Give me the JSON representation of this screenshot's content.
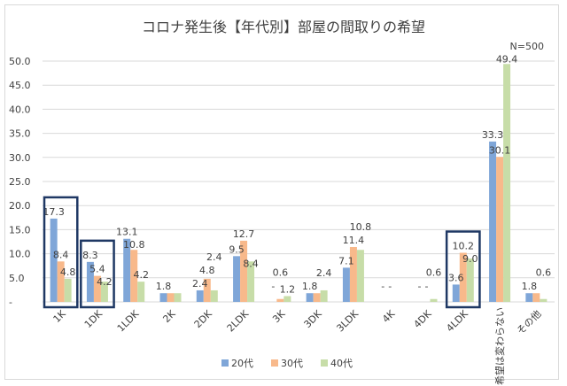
{
  "chart_data": {
    "type": "bar",
    "title": "コロナ発生後【年代別】部屋の間取りの希望",
    "note": "N=500",
    "categories": [
      "1K",
      "1DK",
      "1LDK",
      "2K",
      "2DK",
      "2LDK",
      "3K",
      "3DK",
      "3LDK",
      "4K",
      "4DK",
      "4LDK",
      "希望は変わらない",
      "その他"
    ],
    "series": [
      {
        "name": "20代",
        "color": "#7fa6d8",
        "values": [
          17.3,
          8.3,
          13.1,
          1.8,
          2.4,
          9.5,
          0,
          1.8,
          7.1,
          0,
          0,
          3.6,
          33.3,
          1.8
        ],
        "labels": [
          "17.3",
          "8.3",
          "13.1",
          "1.8",
          "2.4",
          "9.5",
          "-",
          "1.8",
          "7.1",
          "-",
          "-",
          "3.6",
          "33.3",
          "1.8"
        ]
      },
      {
        "name": "30代",
        "color": "#f8b98b",
        "values": [
          8.4,
          5.4,
          10.8,
          1.8,
          4.8,
          12.7,
          0.6,
          1.8,
          11.4,
          0,
          0,
          10.2,
          30.1,
          1.8
        ],
        "labels": [
          "8.4",
          "5.4",
          "10.8",
          "",
          "4.8",
          "12.7",
          "0.6",
          "",
          "11.4",
          "-",
          "-",
          "10.2",
          "30.1",
          ""
        ]
      },
      {
        "name": "40代",
        "color": "#c7dda8",
        "values": [
          4.8,
          4.2,
          4.2,
          1.8,
          2.4,
          8.4,
          1.2,
          2.4,
          10.8,
          0,
          0.6,
          9.0,
          49.4,
          0.6
        ],
        "labels": [
          "4.8",
          "4.2",
          "4.2",
          "",
          "2.4",
          "8.4",
          "1.2",
          "2.4",
          "10.8",
          "",
          "0.6",
          "9.0",
          "49.4",
          "0.6"
        ]
      }
    ],
    "yticks": [
      "-",
      "5.0",
      "10.0",
      "15.0",
      "20.0",
      "25.0",
      "30.0",
      "35.0",
      "40.0",
      "45.0",
      "50.0"
    ],
    "ylim": [
      0,
      50
    ],
    "grid": true,
    "legend": "bottom",
    "highlighted_categories": [
      "1K",
      "1DK",
      "4LDK"
    ],
    "highlight_color": "#1f3864"
  }
}
